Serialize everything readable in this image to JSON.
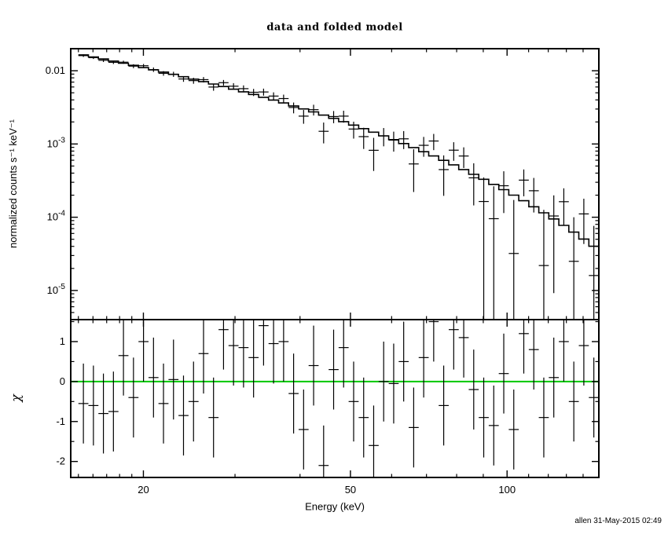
{
  "page": {
    "background": "#ffffff",
    "footer_text": "allen 31-May-2015 02:49"
  },
  "chart_data": [
    {
      "type": "scatter",
      "title": "data and folded model",
      "xlabel": "",
      "ylabel": "normalized counts s⁻¹ keV⁻¹",
      "xscale": "log",
      "yscale": "log",
      "xlim": [
        14.5,
        150.1
      ],
      "ylim": [
        4e-06,
        0.02
      ],
      "grid": false,
      "xticks": {
        "major": [
          20,
          50,
          100
        ],
        "labels": [
          "20",
          "50",
          "100"
        ],
        "minor": [
          15,
          16,
          17,
          18,
          19,
          30,
          40,
          60,
          70,
          80,
          90,
          110,
          120,
          130,
          140,
          150
        ]
      },
      "yticks": {
        "major": [
          0.01,
          0.001,
          0.0001,
          1e-05
        ],
        "labels": [
          "0.01",
          "10^-3",
          "10^-4",
          "10^-5"
        ]
      },
      "bin_edges_kev": [
        15.0,
        15.68,
        16.39,
        17.13,
        17.91,
        18.72,
        19.57,
        20.46,
        21.38,
        22.35,
        23.36,
        24.42,
        25.53,
        26.68,
        27.89,
        29.15,
        30.47,
        31.85,
        33.3,
        34.8,
        36.38,
        38.03,
        39.75,
        41.55,
        43.43,
        45.4,
        47.45,
        49.6,
        51.85,
        54.2,
        56.65,
        59.22,
        61.9,
        64.7,
        67.63,
        70.69,
        73.89,
        77.24,
        80.74,
        84.39,
        88.21,
        92.21,
        96.39,
        100.75,
        105.32,
        110.09,
        115.07,
        120.28,
        125.73,
        131.42,
        137.37,
        143.6,
        150.1
      ],
      "series": [
        {
          "name": "data",
          "style": "errorbar",
          "color": "#000000",
          "y": [
            0.01609,
            0.01508,
            0.01389,
            0.01303,
            0.01308,
            0.01156,
            0.0117,
            0.01036,
            0.00922,
            0.00896,
            0.00772,
            0.00733,
            0.00756,
            0.00599,
            0.00687,
            0.00615,
            0.00569,
            0.00508,
            0.00513,
            0.00451,
            0.00417,
            0.00315,
            0.0024,
            0.00294,
            0.00149,
            0.00237,
            0.0024,
            0.0016,
            0.00126,
            0.00082,
            0.00129,
            0.00113,
            0.001176,
            0.000534,
            0.000959,
            0.001098,
            0.000447,
            0.000823,
            0.000685,
            0.000345,
            0.000164,
            9.55e-05,
            0.000269,
            3.2e-05,
            0.000321,
            0.00023,
            2.19e-05,
            0.000104,
            0.000163,
            2.5e-05,
            0.000111,
            1.6e-05
          ],
          "yerr": [
            0.000658,
            0.000618,
            0.000724,
            0.000677,
            0.000634,
            0.00071,
            0.000662,
            0.00072,
            0.000671,
            0.000714,
            0.000662,
            0.000691,
            0.00064,
            0.000658,
            0.000608,
            0.000616,
            0.000619,
            0.000569,
            0.000564,
            0.000557,
            0.000545,
            0.00053,
            0.000512,
            0.000493,
            0.000471,
            0.000448,
            0.000444,
            0.000416,
            0.000405,
            0.000392,
            0.000361,
            0.000344,
            0.000324,
            0.000313,
            0.00029,
            0.000274,
            0.000251,
            0.000234,
            0.000215,
            0.0002,
            0.000185,
            0.000169,
            0.000155,
            0.00014,
            0.000128,
            0.000114,
            0.000104,
            9.48e-05,
            8.51e-05,
            7.51e-05,
            6.79e-05,
            6.02e-05
          ]
        },
        {
          "name": "folded model",
          "style": "step",
          "color": "#000000",
          "y": [
            0.01645,
            0.01545,
            0.01447,
            0.01354,
            0.01267,
            0.01184,
            0.01104,
            0.01029,
            0.00959,
            0.00892,
            0.00828,
            0.00768,
            0.00711,
            0.00658,
            0.00608,
            0.0056,
            0.00516,
            0.00474,
            0.00434,
            0.00398,
            0.00363,
            0.00331,
            0.00301,
            0.00274,
            0.00248,
            0.00224,
            0.00202,
            0.00181,
            0.00162,
            0.00145,
            0.00129,
            0.001146,
            0.001014,
            0.000893,
            0.000785,
            0.000686,
            0.000598,
            0.000519,
            0.000448,
            0.000385,
            0.00033,
            0.000281,
            0.000238,
            0.0002,
            0.000168,
            0.000139,
            0.000115,
            9.48e-05,
            7.74e-05,
            6.26e-05,
            5.03e-05,
            4.01e-05
          ]
        }
      ]
    },
    {
      "type": "scatter",
      "title": "",
      "xlabel": "Energy (keV)",
      "ylabel": "χ",
      "xscale": "log",
      "yscale": "linear",
      "xlim": [
        14.5,
        150.1
      ],
      "ylim": [
        -2.4,
        1.55
      ],
      "grid": false,
      "xticks": {
        "major": [
          20,
          50,
          100
        ],
        "labels": [
          "20",
          "50",
          "100"
        ],
        "minor": [
          15,
          16,
          17,
          18,
          19,
          30,
          40,
          60,
          70,
          80,
          90,
          110,
          120,
          130,
          140,
          150
        ]
      },
      "yticks": {
        "major": [
          -2,
          -1,
          0,
          1
        ],
        "labels": [
          "-2",
          "-1",
          "0",
          "1"
        ],
        "minor": [
          -1.5,
          -0.5,
          0.5,
          1.5
        ]
      },
      "bin_edges_kev": [
        15.0,
        15.68,
        16.39,
        17.13,
        17.91,
        18.72,
        19.57,
        20.46,
        21.38,
        22.35,
        23.36,
        24.42,
        25.53,
        26.68,
        27.89,
        29.15,
        30.47,
        31.85,
        33.3,
        34.8,
        36.38,
        38.03,
        39.75,
        41.55,
        43.43,
        45.4,
        47.45,
        49.6,
        51.85,
        54.2,
        56.65,
        59.22,
        61.9,
        64.7,
        67.63,
        70.69,
        73.89,
        77.24,
        80.74,
        84.39,
        88.21,
        92.21,
        96.39,
        100.75,
        105.32,
        110.09,
        115.07,
        120.28,
        125.73,
        131.42,
        137.37,
        143.6,
        150.1
      ],
      "series": [
        {
          "name": "zero-line",
          "style": "hline",
          "color": "#00c800",
          "y": 0
        },
        {
          "name": "chi-residuals",
          "style": "errorbar",
          "color": "#000000",
          "y": [
            -0.55,
            -0.6,
            -0.8,
            -0.75,
            0.65,
            -0.4,
            1.0,
            0.1,
            -0.55,
            0.05,
            -0.85,
            -0.5,
            0.7,
            -0.9,
            1.3,
            0.9,
            0.85,
            0.6,
            1.4,
            0.95,
            1.0,
            -0.3,
            -1.2,
            0.4,
            -2.1,
            0.3,
            0.85,
            -0.5,
            -0.9,
            -1.6,
            0.0,
            -0.05,
            0.5,
            -1.15,
            0.6,
            1.5,
            -0.6,
            1.3,
            1.1,
            -0.2,
            -0.9,
            -1.1,
            0.2,
            -1.2,
            1.2,
            0.8,
            -0.9,
            0.1,
            1.0,
            -0.5,
            0.9,
            -0.4
          ],
          "yerr": 1
        }
      ]
    }
  ]
}
